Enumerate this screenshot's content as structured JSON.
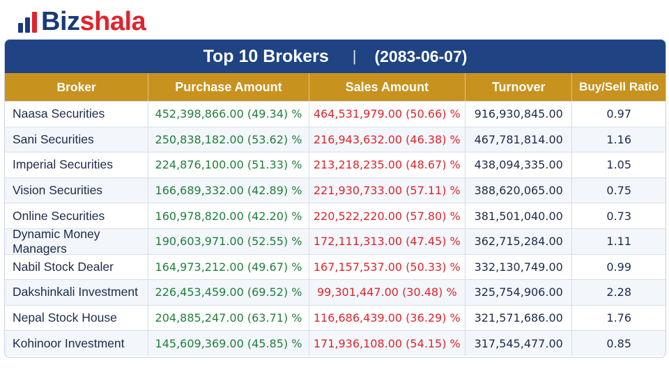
{
  "brand": {
    "name_part1": "Biz",
    "name_part2": "shala",
    "icon": "bar-chart-logo-icon",
    "colors": {
      "primary": "#1a3a7a",
      "accent": "#e0232c"
    }
  },
  "table": {
    "title": "Top 10 Brokers",
    "separator": "|",
    "date": "(2083-06-07)",
    "colors": {
      "title_bg": "#1f4383",
      "header_bg": "#c8921f",
      "purchase": "#1e7f3a",
      "sales": "#e0232c"
    },
    "columns": [
      "Broker",
      "Purchase Amount",
      "Sales Amount",
      "Turnover",
      "Buy/Sell Ratio"
    ],
    "rows": [
      {
        "broker": "Naasa Securities",
        "purchase": "452,398,866.00 (49.34) %",
        "sales": "464,531,979.00 (50.66) %",
        "turnover": "916,930,845.00",
        "ratio": "0.97"
      },
      {
        "broker": "Sani Securities",
        "purchase": "250,838,182.00 (53.62) %",
        "sales": "216,943,632.00 (46.38) %",
        "turnover": "467,781,814.00",
        "ratio": "1.16"
      },
      {
        "broker": "Imperial Securities",
        "purchase": "224,876,100.00 (51.33) %",
        "sales": "213,218,235.00 (48.67) %",
        "turnover": "438,094,335.00",
        "ratio": "1.05"
      },
      {
        "broker": "Vision Securities",
        "purchase": "166,689,332.00 (42.89) %",
        "sales": "221,930,733.00 (57.11) %",
        "turnover": "388,620,065.00",
        "ratio": "0.75"
      },
      {
        "broker": "Online Securities",
        "purchase": "160,978,820.00 (42.20) %",
        "sales": "220,522,220.00 (57.80) %",
        "turnover": "381,501,040.00",
        "ratio": "0.73"
      },
      {
        "broker": "Dynamic Money Managers",
        "purchase": "190,603,971.00 (52.55) %",
        "sales": "172,111,313.00 (47.45) %",
        "turnover": "362,715,284.00",
        "ratio": "1.11"
      },
      {
        "broker": "Nabil Stock Dealer",
        "purchase": "164,973,212.00 (49.67) %",
        "sales": "167,157,537.00 (50.33) %",
        "turnover": "332,130,749.00",
        "ratio": "0.99"
      },
      {
        "broker": "Dakshinkali Investment",
        "purchase": "226,453,459.00 (69.52) %",
        "sales": "99,301,447.00 (30.48) %",
        "turnover": "325,754,906.00",
        "ratio": "2.28"
      },
      {
        "broker": "Nepal Stock House",
        "purchase": "204,885,247.00 (63.71) %",
        "sales": "116,686,439.00 (36.29) %",
        "turnover": "321,571,686.00",
        "ratio": "1.76"
      },
      {
        "broker": "Kohinoor Investment",
        "purchase": "145,609,369.00 (45.85) %",
        "sales": "171,936,108.00 (54.15) %",
        "turnover": "317,545,477.00",
        "ratio": "0.85"
      }
    ]
  }
}
